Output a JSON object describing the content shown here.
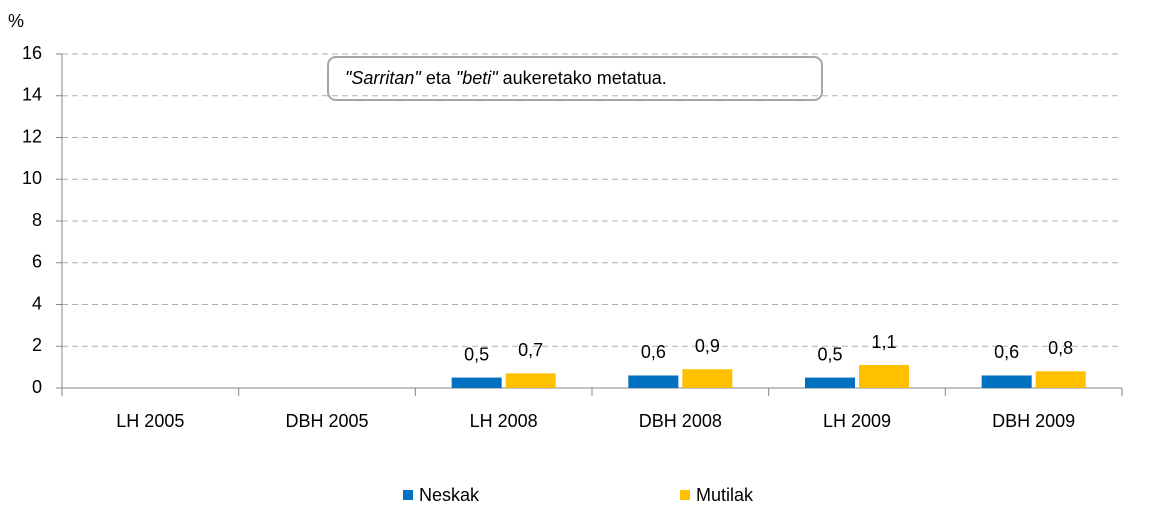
{
  "chart_data": {
    "type": "bar",
    "y_label": "%",
    "annotation": [
      {
        "text": "\"Sarritan\"",
        "italic": true
      },
      {
        "text": " eta ",
        "italic": false
      },
      {
        "text": "\"beti\"",
        "italic": true
      },
      {
        "text": " aukeretako metatua.",
        "italic": false
      }
    ],
    "categories": [
      "LH 2005",
      "DBH 2005",
      "LH 2008",
      "DBH 2008",
      "LH 2009",
      "DBH 2009"
    ],
    "series": [
      {
        "name": "Neskak",
        "color": "#0070c0",
        "values": [
          null,
          null,
          0.5,
          0.6,
          0.5,
          0.6
        ],
        "value_labels": [
          null,
          null,
          "0,5",
          "0,6",
          "0,5",
          "0,6"
        ]
      },
      {
        "name": "Mutilak",
        "color": "#ffc000",
        "values": [
          null,
          null,
          0.7,
          0.9,
          1.1,
          0.8
        ],
        "value_labels": [
          null,
          null,
          "0,7",
          "0,9",
          "1,1",
          "0,8"
        ]
      }
    ],
    "ylim": [
      0,
      16
    ],
    "yticks": [
      0,
      2,
      4,
      6,
      8,
      10,
      12,
      14,
      16
    ],
    "grid": true,
    "legend": "bottom"
  }
}
